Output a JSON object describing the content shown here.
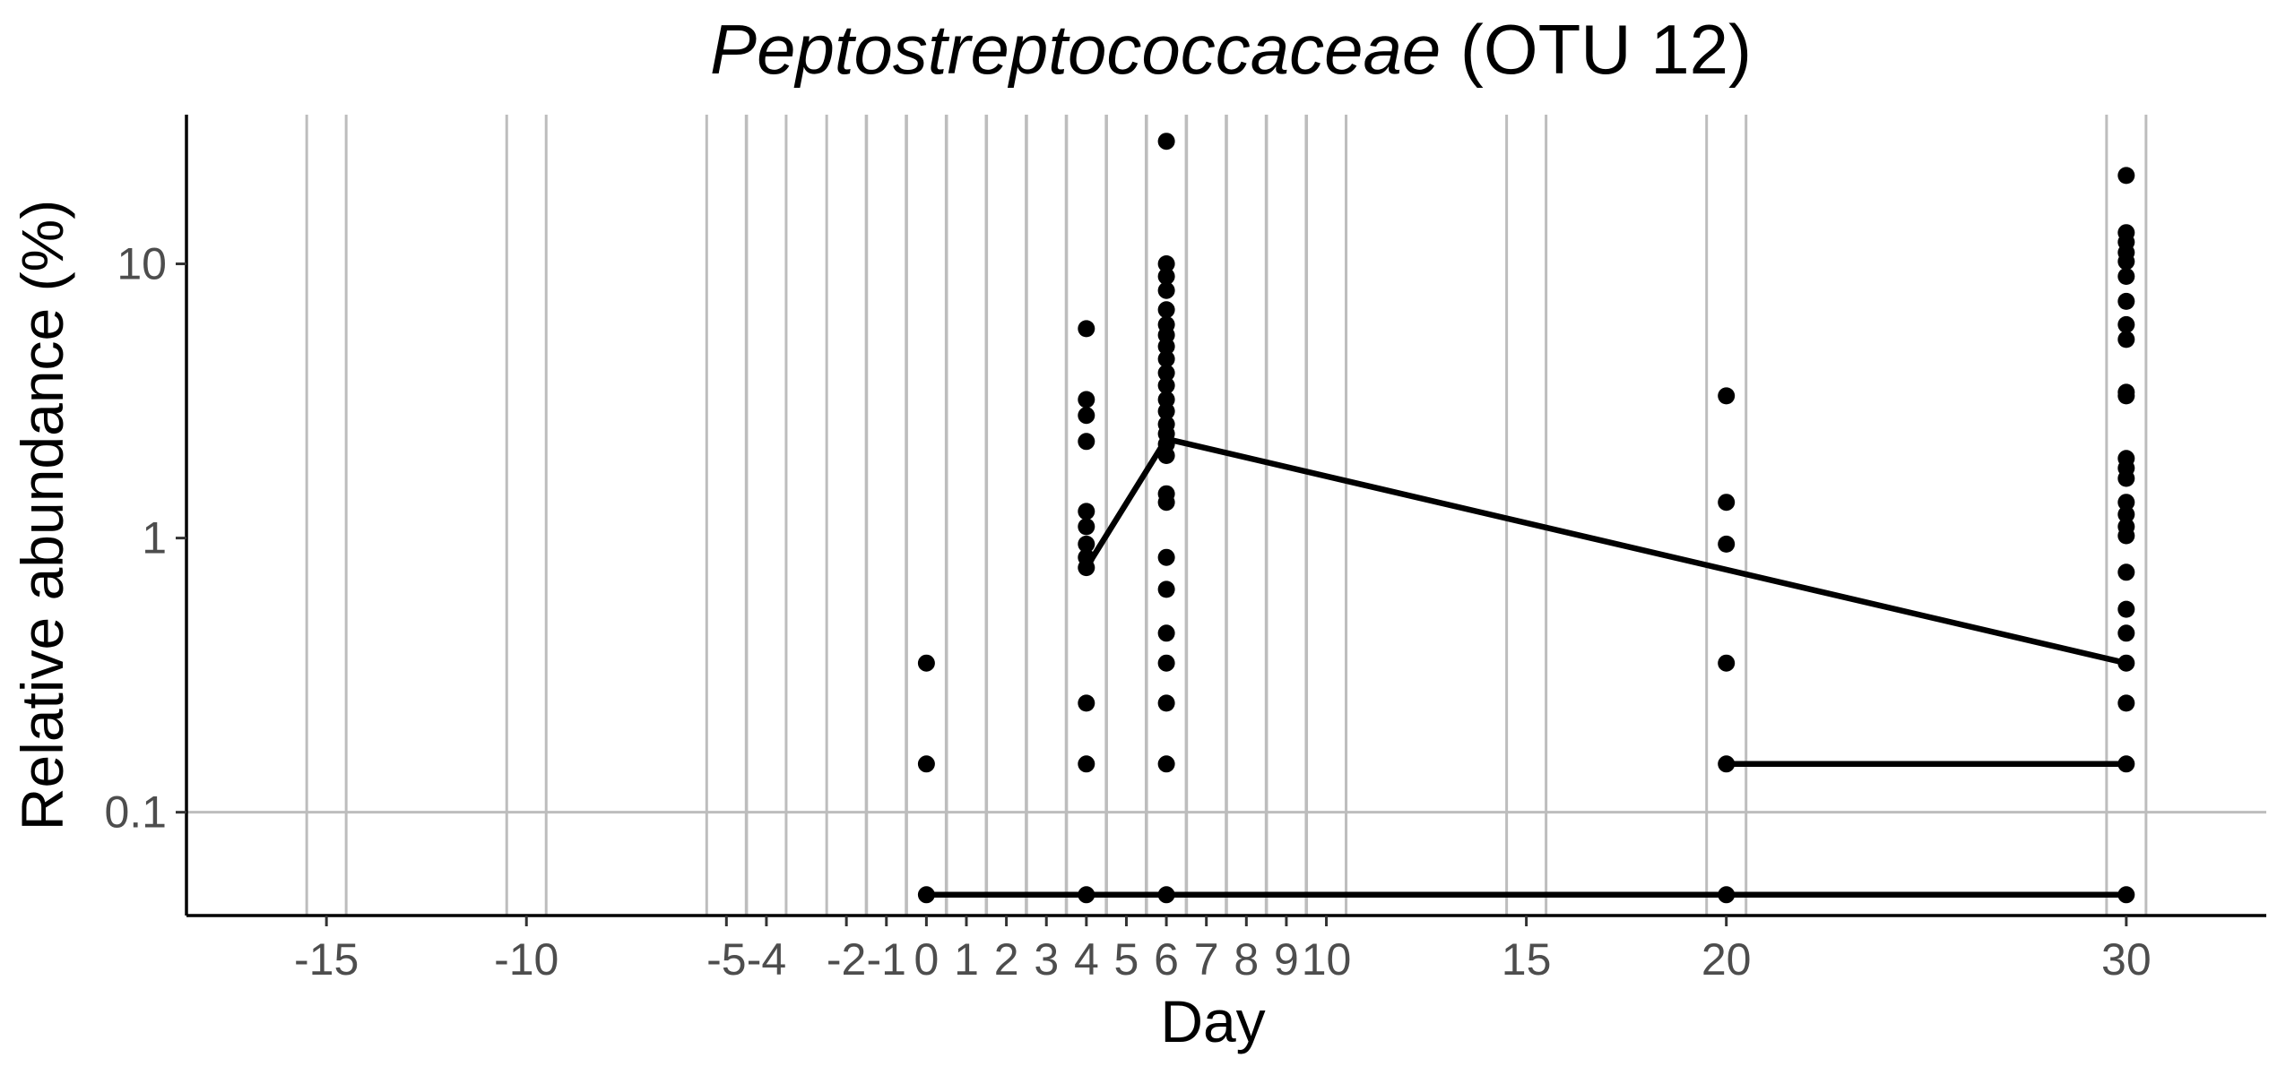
{
  "chart_data": {
    "type": "scatter",
    "title": {
      "italic": "Peptostreptococcaceae",
      "plain": " (OTU 12)"
    },
    "xlabel": "Day",
    "ylabel": "Relative abundance (%)",
    "y_scale": "log10",
    "ylim": [
      0.042,
      35
    ],
    "xlim": [
      -18.5,
      33.5
    ],
    "grid": {
      "vertical": true,
      "horizontal_at": [
        0.1
      ]
    },
    "x_ticks": [
      {
        "value": -15,
        "label": "-15"
      },
      {
        "value": -10,
        "label": "-10"
      },
      {
        "value": -5,
        "label": "-5"
      },
      {
        "value": -4,
        "label": "-4"
      },
      {
        "value": -2,
        "label": "-2"
      },
      {
        "value": -1,
        "label": "-1"
      },
      {
        "value": 0,
        "label": "0"
      },
      {
        "value": 1,
        "label": "1"
      },
      {
        "value": 2,
        "label": "2"
      },
      {
        "value": 3,
        "label": "3"
      },
      {
        "value": 4,
        "label": "4"
      },
      {
        "value": 5,
        "label": "5"
      },
      {
        "value": 6,
        "label": "6"
      },
      {
        "value": 7,
        "label": "7"
      },
      {
        "value": 8,
        "label": "8"
      },
      {
        "value": 9,
        "label": "9"
      },
      {
        "value": 10,
        "label": "10"
      },
      {
        "value": 15,
        "label": "15"
      },
      {
        "value": 20,
        "label": "20"
      },
      {
        "value": 30,
        "label": "30"
      }
    ],
    "y_ticks": [
      {
        "value": 0.1,
        "label": "0.1"
      },
      {
        "value": 1,
        "label": "1"
      },
      {
        "value": 10,
        "label": "10"
      }
    ],
    "points": [
      {
        "x": 0,
        "y": 0.35
      },
      {
        "x": 0,
        "y": 0.15
      },
      {
        "x": 0,
        "y": 0.05
      },
      {
        "x": 4,
        "y": 5.8
      },
      {
        "x": 4,
        "y": 3.2
      },
      {
        "x": 4,
        "y": 2.8
      },
      {
        "x": 4,
        "y": 2.25
      },
      {
        "x": 4,
        "y": 1.25
      },
      {
        "x": 4,
        "y": 1.1
      },
      {
        "x": 4,
        "y": 0.95
      },
      {
        "x": 4,
        "y": 0.85
      },
      {
        "x": 4,
        "y": 0.78
      },
      {
        "x": 4,
        "y": 0.25
      },
      {
        "x": 4,
        "y": 0.15
      },
      {
        "x": 4,
        "y": 0.05
      },
      {
        "x": 6,
        "y": 28
      },
      {
        "x": 6,
        "y": 10
      },
      {
        "x": 6,
        "y": 9
      },
      {
        "x": 6,
        "y": 8
      },
      {
        "x": 6,
        "y": 6.8
      },
      {
        "x": 6,
        "y": 6
      },
      {
        "x": 6,
        "y": 5.5
      },
      {
        "x": 6,
        "y": 5
      },
      {
        "x": 6,
        "y": 4.5
      },
      {
        "x": 6,
        "y": 4
      },
      {
        "x": 6,
        "y": 3.6
      },
      {
        "x": 6,
        "y": 3.2
      },
      {
        "x": 6,
        "y": 2.9
      },
      {
        "x": 6,
        "y": 2.6
      },
      {
        "x": 6,
        "y": 2.4
      },
      {
        "x": 6,
        "y": 2.2
      },
      {
        "x": 6,
        "y": 2.0
      },
      {
        "x": 6,
        "y": 1.45
      },
      {
        "x": 6,
        "y": 1.35
      },
      {
        "x": 6,
        "y": 0.85
      },
      {
        "x": 6,
        "y": 0.65
      },
      {
        "x": 6,
        "y": 0.45
      },
      {
        "x": 6,
        "y": 0.35
      },
      {
        "x": 6,
        "y": 0.25
      },
      {
        "x": 6,
        "y": 0.15
      },
      {
        "x": 6,
        "y": 0.05
      },
      {
        "x": 20,
        "y": 3.3
      },
      {
        "x": 20,
        "y": 1.35
      },
      {
        "x": 20,
        "y": 0.95
      },
      {
        "x": 20,
        "y": 0.35
      },
      {
        "x": 20,
        "y": 0.15
      },
      {
        "x": 20,
        "y": 0.05
      },
      {
        "x": 30,
        "y": 21
      },
      {
        "x": 30,
        "y": 13
      },
      {
        "x": 30,
        "y": 12
      },
      {
        "x": 30,
        "y": 11
      },
      {
        "x": 30,
        "y": 10.2
      },
      {
        "x": 30,
        "y": 9
      },
      {
        "x": 30,
        "y": 7.3
      },
      {
        "x": 30,
        "y": 6
      },
      {
        "x": 30,
        "y": 5.3
      },
      {
        "x": 30,
        "y": 3.4
      },
      {
        "x": 30,
        "y": 3.3
      },
      {
        "x": 30,
        "y": 1.95
      },
      {
        "x": 30,
        "y": 1.8
      },
      {
        "x": 30,
        "y": 1.65
      },
      {
        "x": 30,
        "y": 1.35
      },
      {
        "x": 30,
        "y": 1.22
      },
      {
        "x": 30,
        "y": 1.1
      },
      {
        "x": 30,
        "y": 1.02
      },
      {
        "x": 30,
        "y": 0.75
      },
      {
        "x": 30,
        "y": 0.55
      },
      {
        "x": 30,
        "y": 0.45
      },
      {
        "x": 30,
        "y": 0.35
      },
      {
        "x": 30,
        "y": 0.25
      },
      {
        "x": 30,
        "y": 0.15
      },
      {
        "x": 30,
        "y": 0.05
      }
    ],
    "lines": [
      {
        "points": [
          [
            4,
            0.78
          ],
          [
            6,
            2.3
          ],
          [
            30,
            0.35
          ]
        ]
      },
      {
        "points": [
          [
            20,
            0.15
          ],
          [
            30,
            0.15
          ]
        ]
      },
      {
        "points": [
          [
            0,
            0.05
          ],
          [
            30,
            0.05
          ]
        ]
      }
    ]
  }
}
